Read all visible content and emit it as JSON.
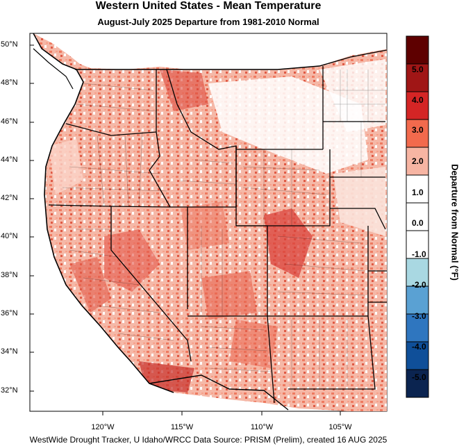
{
  "title": "Western United States - Mean Temperature",
  "subtitle": "August-July 2025  Departure from 1981-2010 Normal",
  "latitudes": [
    "50°N",
    "48°N",
    "46°N",
    "44°N",
    "42°N",
    "40°N",
    "38°N",
    "36°N",
    "34°N",
    "32°N"
  ],
  "longitudes": [
    "120°W",
    "115°W",
    "110°W",
    "105°W"
  ],
  "legend": {
    "title": "Departure from Normal (°F)",
    "labels": [
      "5.0",
      "4.0",
      "3.0",
      "2.0",
      "1.0",
      "0.0",
      "-1.0",
      "-2.0",
      "-3.0",
      "-4.0",
      "-5.0"
    ],
    "colors": [
      "#5e0000",
      "#a01616",
      "#d42525",
      "#f26a4d",
      "#f7b5a3",
      "#ffffff",
      "#ffffff",
      "#a9d8e2",
      "#5aa1d3",
      "#2f76bf",
      "#0f4f99",
      "#0b2450"
    ]
  },
  "credit": "WestWide Drought Tracker, U Idaho/WRCC Data Source: PRISM (Prelim), created 16 AUG 2025"
}
